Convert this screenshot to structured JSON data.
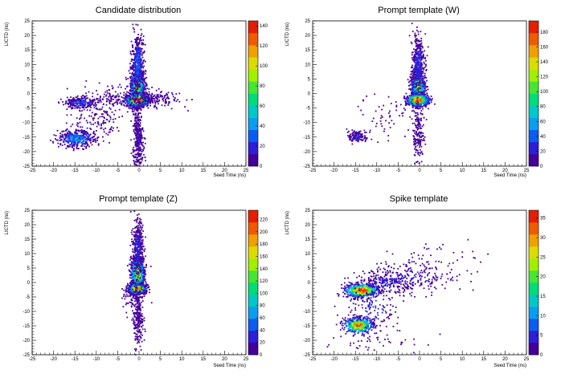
{
  "colorscale": [
    "#440099",
    "#2d1ed8",
    "#0b5cf0",
    "#0a9ef0",
    "#00c8c8",
    "#00dc78",
    "#46e632",
    "#a0f000",
    "#dcdc00",
    "#f0a000",
    "#f05a00",
    "#e61e00"
  ],
  "chart_data": [
    {
      "type": "heatmap",
      "title": "Candidate distribution",
      "xlabel": "Seed Time (ns)",
      "ylabel": "LICTD (ns)",
      "xlim": [
        -25,
        25
      ],
      "ylim": [
        -25,
        25
      ],
      "x_ticks": [
        "-25",
        "-20",
        "-15",
        "-10",
        "-5",
        "0",
        "5",
        "10",
        "15",
        "20",
        "25"
      ],
      "y_ticks": [
        "-25",
        "-20",
        "-15",
        "-10",
        "-5",
        "0",
        "5",
        "10",
        "15",
        "20",
        "25"
      ],
      "z_max": 145,
      "z_ticks": [
        "0",
        "20",
        "40",
        "60",
        "80",
        "100",
        "120",
        "140"
      ],
      "clusters": [
        {
          "cx": -0.3,
          "cy": 2.5,
          "sx": 0.8,
          "sy": 2.6,
          "n": 900,
          "peak": 95
        },
        {
          "cx": -0.3,
          "cy": 10,
          "sx": 0.7,
          "sy": 5,
          "n": 500,
          "peak": 30
        },
        {
          "cx": -0.4,
          "cy": -2.3,
          "sx": 1.4,
          "sy": 1.1,
          "n": 750,
          "peak": 140
        },
        {
          "cx": -0.2,
          "cy": -15,
          "sx": 0.6,
          "sy": 6,
          "n": 350,
          "peak": 12
        },
        {
          "cx": 2.5,
          "cy": -2,
          "sx": 3.5,
          "sy": 1.3,
          "n": 180,
          "peak": 10
        },
        {
          "cx": -14.5,
          "cy": -15.5,
          "sx": 2.2,
          "sy": 1.6,
          "n": 380,
          "peak": 40
        },
        {
          "cx": -13.5,
          "cy": -3.2,
          "sx": 1.8,
          "sy": 1.1,
          "n": 220,
          "peak": 25
        },
        {
          "cx": -7,
          "cy": -2,
          "sx": 4,
          "sy": 2,
          "n": 150,
          "peak": 8
        },
        {
          "cx": -9,
          "cy": -9,
          "sx": 3,
          "sy": 3,
          "n": 120,
          "peak": 6
        }
      ]
    },
    {
      "type": "heatmap",
      "title": "Prompt template (W)",
      "xlabel": "Seed Time (ns)",
      "ylabel": "LICTD (ns)",
      "xlim": [
        -25,
        25
      ],
      "ylim": [
        -25,
        25
      ],
      "x_ticks": [
        "-25",
        "-20",
        "-15",
        "-10",
        "-5",
        "0",
        "5",
        "10",
        "15",
        "20",
        "25"
      ],
      "y_ticks": [
        "-25",
        "-20",
        "-15",
        "-10",
        "-5",
        "0",
        "5",
        "10",
        "15",
        "20",
        "25"
      ],
      "z_max": 195,
      "z_ticks": [
        "0",
        "20",
        "40",
        "60",
        "80",
        "100",
        "120",
        "140",
        "160",
        "180"
      ],
      "clusters": [
        {
          "cx": -0.3,
          "cy": 2.5,
          "sx": 0.8,
          "sy": 2.6,
          "n": 800,
          "peak": 120
        },
        {
          "cx": -0.3,
          "cy": 10,
          "sx": 0.7,
          "sy": 5,
          "n": 380,
          "peak": 30
        },
        {
          "cx": -0.4,
          "cy": -2.3,
          "sx": 1.3,
          "sy": 1.0,
          "n": 700,
          "peak": 190
        },
        {
          "cx": -0.2,
          "cy": -14,
          "sx": 0.6,
          "sy": 5,
          "n": 180,
          "peak": 10
        },
        {
          "cx": -14.5,
          "cy": -14.8,
          "sx": 1.2,
          "sy": 1.2,
          "n": 130,
          "peak": 20
        },
        {
          "cx": -7,
          "cy": -7,
          "sx": 3.5,
          "sy": 3.5,
          "n": 60,
          "peak": 5
        }
      ]
    },
    {
      "type": "heatmap",
      "title": "Prompt template (Z)",
      "xlabel": "Seed Time (ns)",
      "ylabel": "LICTD (ns)",
      "xlim": [
        -25,
        25
      ],
      "ylim": [
        -25,
        25
      ],
      "x_ticks": [
        "-25",
        "-20",
        "-15",
        "-10",
        "-5",
        "0",
        "5",
        "10",
        "15",
        "20",
        "25"
      ],
      "y_ticks": [
        "-25",
        "-20",
        "-15",
        "-10",
        "-5",
        "0",
        "5",
        "10",
        "15",
        "20",
        "25"
      ],
      "z_max": 235,
      "z_ticks": [
        "0",
        "20",
        "40",
        "60",
        "80",
        "100",
        "120",
        "140",
        "160",
        "180",
        "200",
        "220"
      ],
      "clusters": [
        {
          "cx": -0.3,
          "cy": 3,
          "sx": 0.8,
          "sy": 3.2,
          "n": 800,
          "peak": 150
        },
        {
          "cx": -0.3,
          "cy": 12,
          "sx": 0.6,
          "sy": 5,
          "n": 350,
          "peak": 30
        },
        {
          "cx": -0.4,
          "cy": -2.2,
          "sx": 1.0,
          "sy": 0.9,
          "n": 650,
          "peak": 230
        },
        {
          "cx": -0.2,
          "cy": -12,
          "sx": 0.6,
          "sy": 6,
          "n": 250,
          "peak": 12
        },
        {
          "cx": -1.5,
          "cy": -5,
          "sx": 1.5,
          "sy": 3,
          "n": 80,
          "peak": 5
        }
      ]
    },
    {
      "type": "heatmap",
      "title": "Spike template",
      "xlabel": "Seed Time (ns)",
      "ylabel": "LICTD (ns)",
      "xlim": [
        -25,
        25
      ],
      "ylim": [
        -25,
        25
      ],
      "x_ticks": [
        "-25",
        "-20",
        "-15",
        "-10",
        "-5",
        "0",
        "5",
        "10",
        "15",
        "20",
        "25"
      ],
      "y_ticks": [
        "-25",
        "-20",
        "-15",
        "-10",
        "-5",
        "0",
        "5",
        "10",
        "15",
        "20",
        "25"
      ],
      "z_max": 37,
      "z_ticks": [
        "0",
        "5",
        "10",
        "15",
        "20",
        "25",
        "30",
        "35"
      ],
      "clusters": [
        {
          "cx": -13.5,
          "cy": -2.8,
          "sx": 2.0,
          "sy": 1.2,
          "n": 550,
          "peak": 35
        },
        {
          "cx": -14.3,
          "cy": -14.8,
          "sx": 1.8,
          "sy": 1.4,
          "n": 450,
          "peak": 30
        },
        {
          "cx": -7,
          "cy": 0,
          "sx": 4,
          "sy": 2,
          "n": 200,
          "peak": 5
        },
        {
          "cx": -2,
          "cy": 2,
          "sx": 5,
          "sy": 3,
          "n": 180,
          "peak": 4
        },
        {
          "cx": -11,
          "cy": -9,
          "sx": 3,
          "sy": 4,
          "n": 150,
          "peak": 5
        },
        {
          "cx": 3,
          "cy": 6,
          "sx": 6,
          "sy": 4,
          "n": 60,
          "peak": 3
        },
        {
          "cx": -9,
          "cy": -21,
          "sx": 6,
          "sy": 2,
          "n": 40,
          "peak": 3
        }
      ]
    }
  ]
}
